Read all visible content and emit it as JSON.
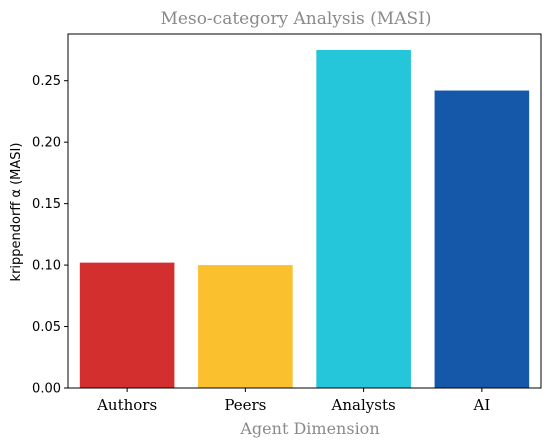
{
  "chart_data": {
    "type": "bar",
    "title": "Meso-category Analysis (MASI)",
    "xlabel": "Agent Dimension",
    "ylabel": "krippendorff α (MASI)",
    "categories": [
      "Authors",
      "Peers",
      "Analysts",
      "AI"
    ],
    "values": [
      0.102,
      0.1,
      0.275,
      0.242
    ],
    "colors": [
      "#d32f2f",
      "#fbc02d",
      "#26c6da",
      "#1557a8"
    ],
    "ylim": [
      0,
      0.288
    ],
    "yticks": [
      0.0,
      0.05,
      0.1,
      0.15,
      0.2,
      0.25
    ],
    "ytick_labels": [
      "0.00",
      "0.05",
      "0.10",
      "0.15",
      "0.20",
      "0.25"
    ],
    "grid": false
  }
}
